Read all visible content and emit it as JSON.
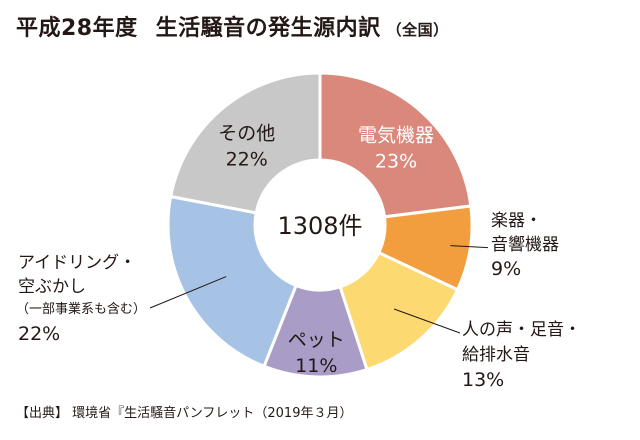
{
  "title": {
    "main": "平成28年度",
    "main2": "生活騒音の発生源内訳",
    "scope": "（全国）"
  },
  "center_label": "1308件",
  "source": "【出典】 環境省『生活騒音パンフレット（2019年３月）",
  "chart_data": {
    "type": "pie",
    "donut": true,
    "title": "平成28年度 生活騒音の発生源内訳（全国）",
    "total": "1308件",
    "unit": "%",
    "slices": [
      {
        "label_lines": [
          "電気機器"
        ],
        "value": 23,
        "value_label": "23%",
        "color": "#db887c",
        "label_color": "#ffffff"
      },
      {
        "label_lines": [
          "楽器・",
          "音響機器"
        ],
        "value": 9,
        "value_label": "9%",
        "color": "#f29e3e",
        "label_color": "#231815"
      },
      {
        "label_lines": [
          "人の声・足音・",
          "給排水音"
        ],
        "value": 13,
        "value_label": "13%",
        "color": "#fcd971",
        "label_color": "#231815"
      },
      {
        "label_lines": [
          "ペット"
        ],
        "value": 11,
        "value_label": "11%",
        "color": "#a99dc7",
        "label_color": "#231815"
      },
      {
        "label_lines": [
          "アイドリング・",
          "空ぶかし",
          "（一部事業系も含む）"
        ],
        "value": 22,
        "value_label": "22%",
        "color": "#a6c3e5",
        "label_color": "#231815"
      },
      {
        "label_lines": [
          "その他"
        ],
        "value": 22,
        "value_label": "22%",
        "color": "#c8c8c8",
        "label_color": "#231815"
      }
    ]
  }
}
